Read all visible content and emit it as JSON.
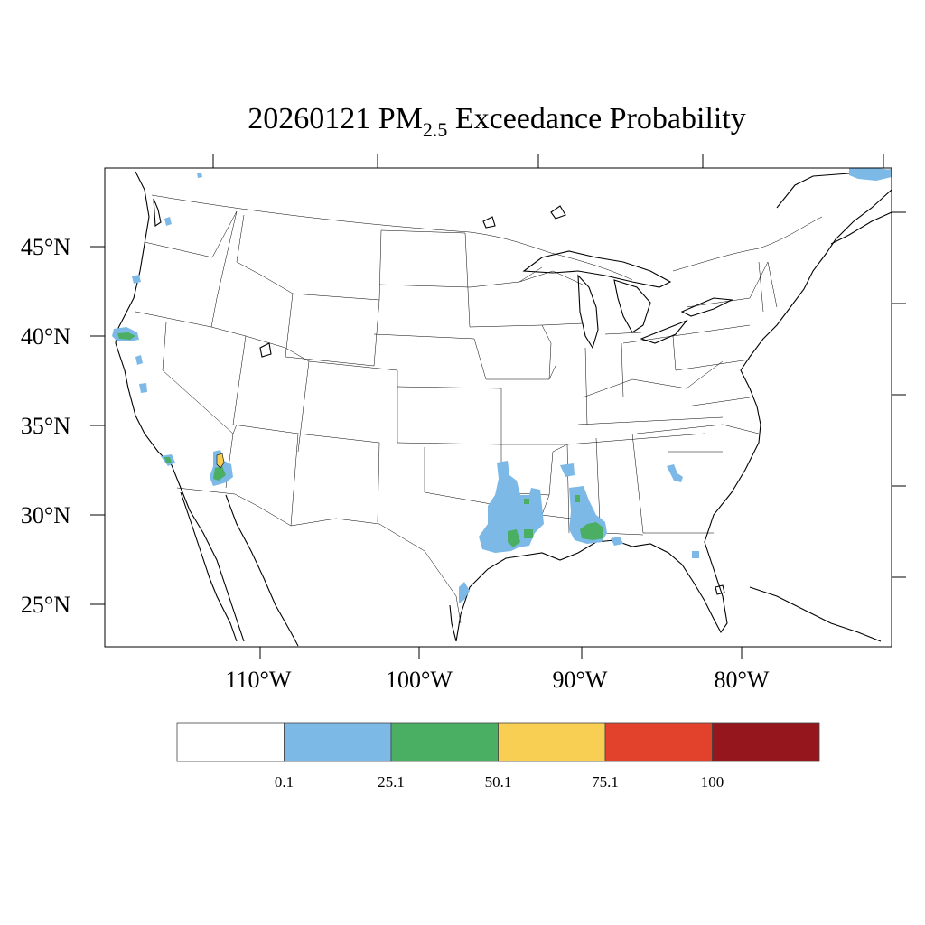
{
  "map": {
    "title_prefix": "20260121 PM",
    "title_subscript": "2.5",
    "title_suffix": " Exceedance Probability",
    "lat_labels": [
      "45°N",
      "40°N",
      "35°N",
      "30°N",
      "25°N"
    ],
    "lon_labels": [
      "110°W",
      "100°W",
      "90°W",
      "80°W"
    ],
    "legend": {
      "colors": [
        "#ffffff",
        "#7cb9e6",
        "#4aaf62",
        "#f9cf53",
        "#e2412b",
        "#95161c"
      ],
      "labels": [
        "0.1",
        "25.1",
        "50.1",
        "75.1",
        "100"
      ]
    },
    "colors": {
      "blue": "#7cb9e6",
      "green": "#4aaf62",
      "yellow": "#f9cf53"
    }
  }
}
